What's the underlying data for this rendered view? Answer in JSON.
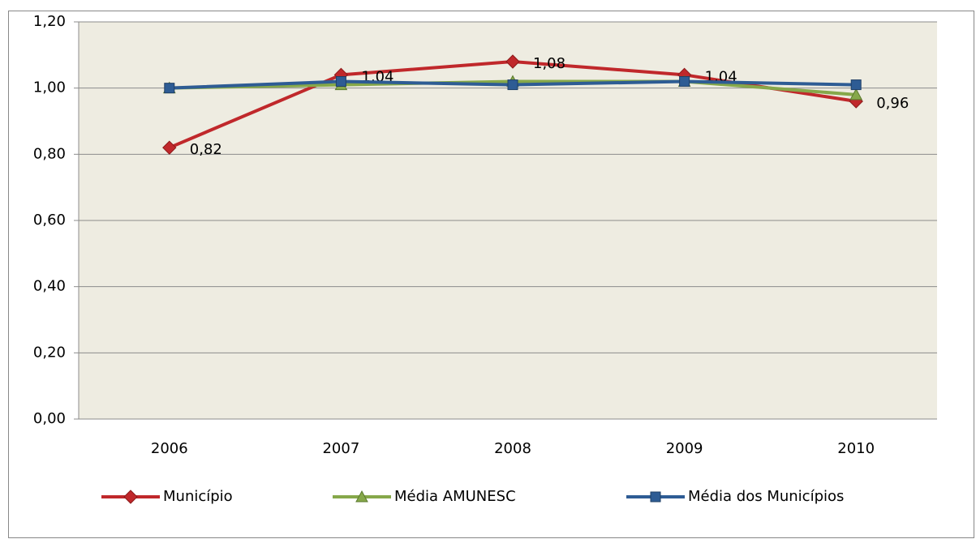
{
  "chart_data": {
    "type": "line",
    "categories": [
      "2006",
      "2007",
      "2008",
      "2009",
      "2010"
    ],
    "series": [
      {
        "name": "Município",
        "color": "#c0282b",
        "marker": "diamond",
        "values": [
          0.82,
          1.04,
          1.08,
          1.04,
          0.96
        ],
        "value_labels": [
          "0,82",
          "1,04",
          "1,08",
          "1,04",
          "0,96"
        ]
      },
      {
        "name": "Média AMUNESC",
        "color": "#86a84a",
        "marker": "triangle",
        "values": [
          1.0,
          1.01,
          1.02,
          1.02,
          0.98
        ]
      },
      {
        "name": "Média dos Municípios",
        "color": "#2e5c94",
        "marker": "square",
        "values": [
          1.0,
          1.02,
          1.01,
          1.02,
          1.01
        ]
      }
    ],
    "ylim": [
      0,
      1.2
    ],
    "yticks": [
      {
        "value": 0,
        "label": "0,00"
      },
      {
        "value": 0.2,
        "label": "0,20"
      },
      {
        "value": 0.4,
        "label": "0,40"
      },
      {
        "value": 0.6,
        "label": "0,60"
      },
      {
        "value": 0.8,
        "label": "0,80"
      },
      {
        "value": 1.0,
        "label": "1,00"
      },
      {
        "value": 1.2,
        "label": "1,20"
      }
    ],
    "grid": true,
    "legend": "bottom"
  }
}
